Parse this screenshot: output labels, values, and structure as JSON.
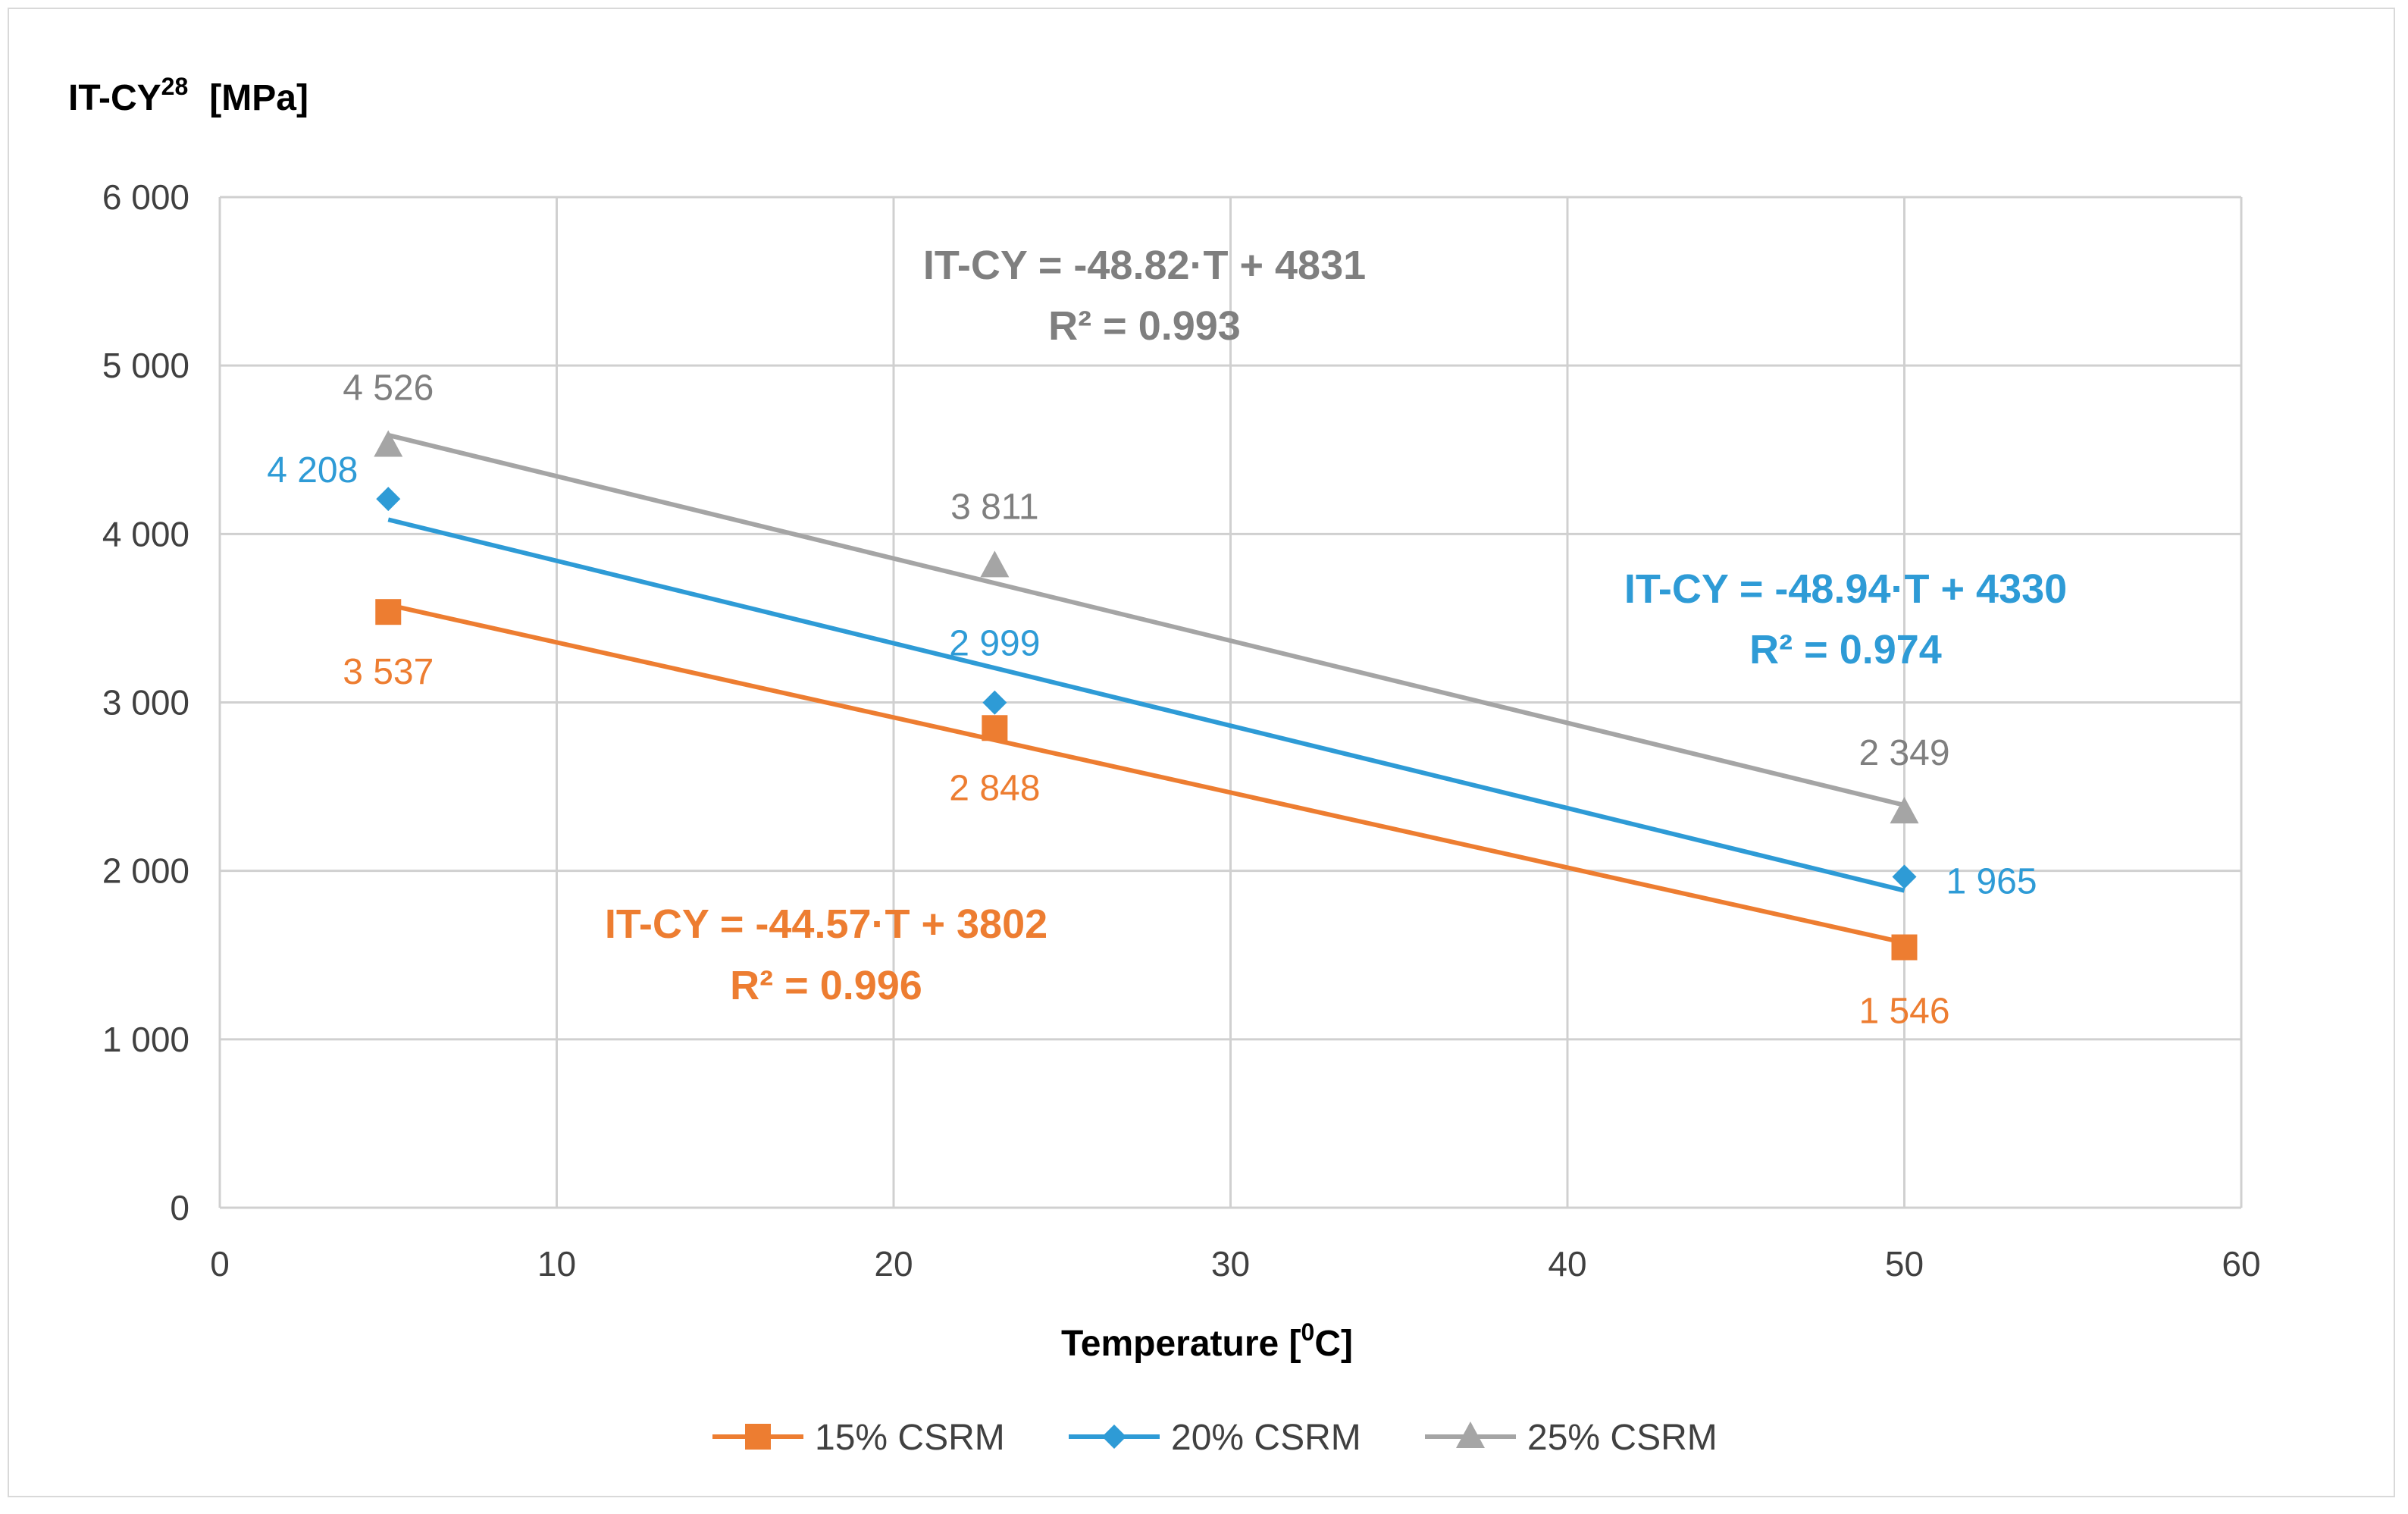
{
  "chart_data": {
    "type": "scatter",
    "ylabel": "IT-CY",
    "ylabel_sup": "28",
    "ylabel_unit": "[MPa]",
    "xlabel": "Temperature [",
    "xlabel_sup": "0",
    "xlabel_unit": "C]",
    "xlim": [
      0,
      60
    ],
    "ylim": [
      0,
      6000
    ],
    "x_ticks": [
      0,
      10,
      20,
      30,
      40,
      50,
      60
    ],
    "y_ticks": [
      0,
      1000,
      2000,
      3000,
      4000,
      5000,
      6000
    ],
    "x_tick_labels": [
      "0",
      "10",
      "20",
      "30",
      "40",
      "50",
      "60"
    ],
    "y_tick_labels": [
      "0",
      "1 000",
      "2 000",
      "3 000",
      "4 000",
      "5 000",
      "6 000"
    ],
    "grid": true,
    "legend_position": "bottom",
    "series": [
      {
        "name": "15% CSRM",
        "color": "#ED7D31",
        "marker": "square",
        "x": [
          5,
          23,
          50
        ],
        "y": [
          3537,
          2848,
          1546
        ],
        "point_labels": [
          "3 537",
          "2 848",
          "1 546"
        ],
        "trendline": {
          "slope": -44.57,
          "intercept": 3802
        },
        "equation": "IT-CY = -44.57·T + 3802",
        "r_squared": "R² = 0.996"
      },
      {
        "name": "20% CSRM",
        "color": "#2E9BD6",
        "marker": "diamond",
        "x": [
          5,
          23,
          50
        ],
        "y": [
          4208,
          2999,
          1965
        ],
        "point_labels": [
          "4 208",
          "2 999",
          "1 965"
        ],
        "trendline": {
          "slope": -48.94,
          "intercept": 4330
        },
        "equation": "IT-CY = -48.94·T + 4330",
        "r_squared": "R² = 0.974"
      },
      {
        "name": "25% CSRM",
        "color": "#A5A5A5",
        "label_color": "#7F7F7F",
        "marker": "triangle",
        "x": [
          5,
          23,
          50
        ],
        "y": [
          4526,
          3811,
          2349
        ],
        "point_labels": [
          "4 526",
          "3 811",
          "2 349"
        ],
        "trendline": {
          "slope": -48.82,
          "intercept": 4831
        },
        "equation": "IT-CY = -48.82·T + 4831",
        "r_squared": "R² = 0.993"
      }
    ]
  }
}
